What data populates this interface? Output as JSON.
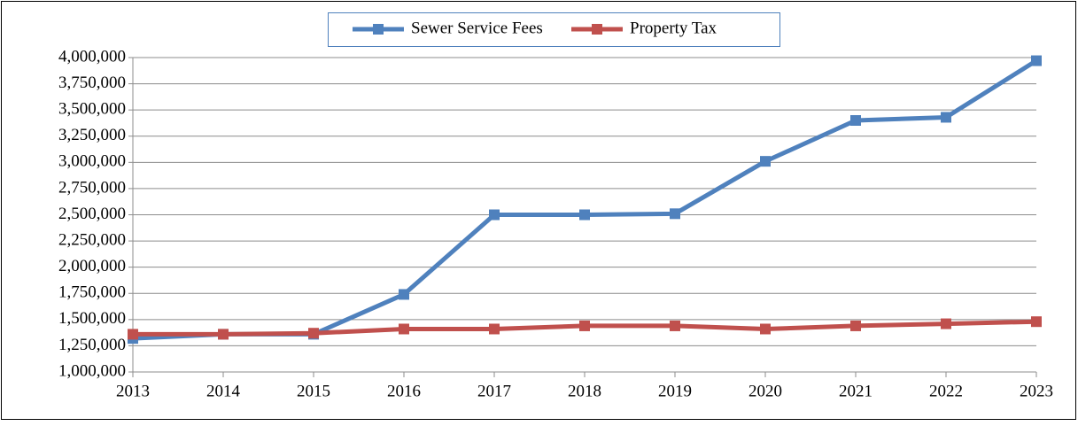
{
  "chart_data": {
    "type": "line",
    "categories": [
      "2013",
      "2014",
      "2015",
      "2016",
      "2017",
      "2018",
      "2019",
      "2020",
      "2021",
      "2022",
      "2023"
    ],
    "series": [
      {
        "name": "Sewer Service Fees",
        "color": "#4f81bd",
        "values": [
          1320000,
          1360000,
          1360000,
          1740000,
          2500000,
          2500000,
          2510000,
          3010000,
          3400000,
          3430000,
          3970000
        ]
      },
      {
        "name": "Property Tax",
        "color": "#c0504d",
        "values": [
          1360000,
          1360000,
          1370000,
          1410000,
          1410000,
          1440000,
          1440000,
          1410000,
          1440000,
          1460000,
          1480000
        ]
      }
    ],
    "ylim": [
      1000000,
      4000000
    ],
    "yticks": [
      {
        "value": 1000000,
        "label": "1,000,000"
      },
      {
        "value": 1250000,
        "label": "1,250,000"
      },
      {
        "value": 1500000,
        "label": "1,500,000"
      },
      {
        "value": 1750000,
        "label": "1,750,000"
      },
      {
        "value": 2000000,
        "label": "2,000,000"
      },
      {
        "value": 2250000,
        "label": "2,250,000"
      },
      {
        "value": 2500000,
        "label": "2,500,000"
      },
      {
        "value": 2750000,
        "label": "2,750,000"
      },
      {
        "value": 3000000,
        "label": "3,000,000"
      },
      {
        "value": 3250000,
        "label": "3,250,000"
      },
      {
        "value": 3500000,
        "label": "3,500,000"
      },
      {
        "value": 3750000,
        "label": "3,750,000"
      },
      {
        "value": 4000000,
        "label": "4,000,000"
      }
    ],
    "grid": true,
    "legend": "top"
  }
}
